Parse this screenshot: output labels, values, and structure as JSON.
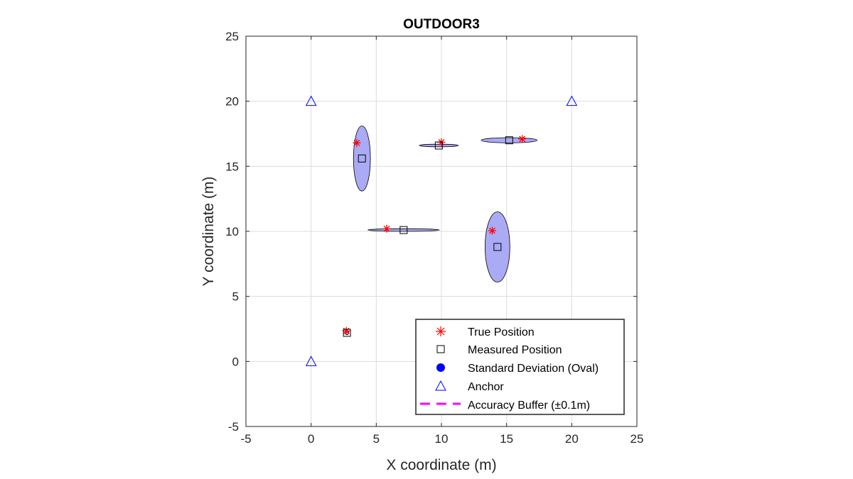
{
  "chart_data": {
    "type": "scatter",
    "title": "OUTDOOR3",
    "xlabel": "X coordinate (m)",
    "ylabel": "Y coordinate (m)",
    "xlim": [
      -5,
      25
    ],
    "ylim": [
      -5,
      25
    ],
    "xticks": [
      -5,
      0,
      5,
      10,
      15,
      20,
      25
    ],
    "yticks": [
      -5,
      0,
      5,
      10,
      15,
      20,
      25
    ],
    "grid": true,
    "legend_location": "bottom-right",
    "colors": {
      "true_position": "#ff0000",
      "measured_position": "#000000",
      "oval_fill": "#aaaaf5",
      "oval_edge": "#000000",
      "anchor": "#0000ff",
      "accuracy_buffer": "#ff00ff",
      "grid": "#dcdcdc"
    },
    "legend": [
      {
        "key": "true",
        "label": "True Position"
      },
      {
        "key": "measured",
        "label": "Measured Position"
      },
      {
        "key": "oval",
        "label": "Standard Deviation (Oval)"
      },
      {
        "key": "anchor",
        "label": "Anchor"
      },
      {
        "key": "buffer",
        "label": "Accuracy Buffer (±0.1m)"
      }
    ],
    "anchors": [
      {
        "x": 0,
        "y": 20
      },
      {
        "x": 20,
        "y": 20
      },
      {
        "x": 0,
        "y": 0
      }
    ],
    "points": [
      {
        "true": [
          3.5,
          16.8
        ],
        "measured": [
          3.9,
          15.6
        ],
        "std": [
          0.65,
          2.5
        ]
      },
      {
        "true": [
          10.0,
          16.85
        ],
        "measured": [
          9.8,
          16.6
        ],
        "std": [
          1.5,
          0.1
        ]
      },
      {
        "true": [
          16.2,
          17.1
        ],
        "measured": [
          15.2,
          17.0
        ],
        "std": [
          2.15,
          0.2
        ]
      },
      {
        "true": [
          5.8,
          10.2
        ],
        "measured": [
          7.1,
          10.1
        ],
        "std": [
          2.75,
          0.1
        ]
      },
      {
        "true": [
          13.9,
          10.05
        ],
        "measured": [
          14.3,
          8.8
        ],
        "std": [
          0.95,
          2.7
        ]
      },
      {
        "true": [
          2.7,
          2.35
        ],
        "measured": [
          2.75,
          2.2
        ],
        "std": [
          0.15,
          0.15
        ]
      }
    ]
  }
}
